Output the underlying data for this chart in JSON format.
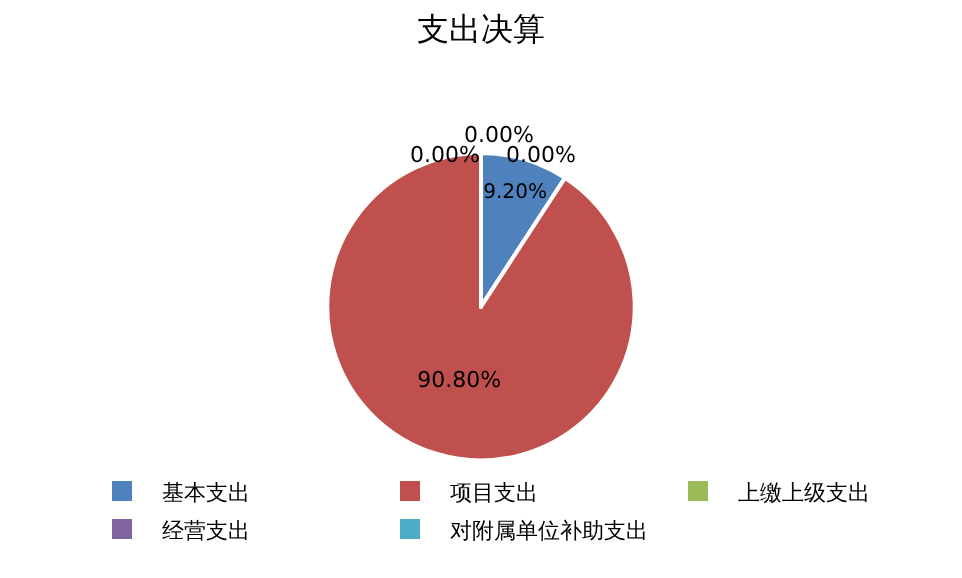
{
  "chart_data": {
    "type": "pie",
    "title": "支出决算",
    "categories": [
      "基本支出",
      "项目支出",
      "上缴上级支出",
      "经营支出",
      "对附属单位补助支出"
    ],
    "values": [
      9.2,
      90.8,
      0,
      0,
      0
    ],
    "colors": [
      "#4f81bd",
      "#c0504d",
      "#9bbb59",
      "#8064a2",
      "#4bacc6"
    ],
    "value_labels": [
      "9.20%",
      "90.80%",
      "0.00%",
      "0.00%",
      "0.00%"
    ],
    "legend": "bottom"
  }
}
